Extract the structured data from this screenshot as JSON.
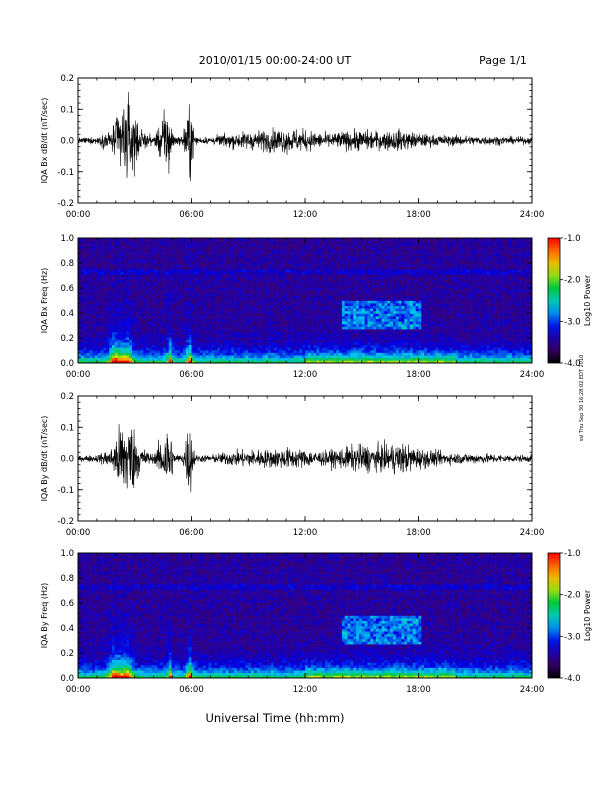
{
  "header": {
    "title": "2010/01/15  00:00-24:00 UT",
    "page": "Page 1/1"
  },
  "footer": {
    "xlabel": "Universal Time (hh:mm)"
  },
  "side_note": "ssl Thu Sep 30 16:28:02 EDT 2010",
  "chart_data": [
    {
      "type": "line",
      "ylabel": "IQA Bx dB/dt (nT/sec)",
      "xlim": [
        0,
        24
      ],
      "ylim": [
        -0.2,
        0.2
      ],
      "xticks": [
        "00:00",
        "06:00",
        "12:00",
        "18:00",
        "24:00"
      ],
      "yticks": [
        "-0.2",
        "-0.1",
        "0.0",
        "0.1",
        "0.2"
      ],
      "envelope": {
        "hours": [
          0,
          1,
          1.8,
          2.3,
          2.8,
          3.3,
          4,
          4.85,
          5.05,
          5.5,
          5.9,
          6.2,
          7,
          8,
          9,
          10,
          11,
          12,
          13,
          14,
          15,
          16,
          17,
          18,
          19,
          20,
          21,
          22,
          23,
          24
        ],
        "amplitude": [
          0.015,
          0.02,
          0.06,
          0.22,
          0.22,
          0.06,
          0.02,
          0.22,
          0.03,
          0.02,
          0.22,
          0.02,
          0.02,
          0.04,
          0.05,
          0.06,
          0.07,
          0.06,
          0.04,
          0.05,
          0.06,
          0.05,
          0.06,
          0.04,
          0.03,
          0.03,
          0.025,
          0.025,
          0.02,
          0.02
        ]
      }
    },
    {
      "type": "heatmap",
      "ylabel": "IQA Bx Freq (Hz)",
      "xlim": [
        0,
        24
      ],
      "ylim": [
        0,
        1.0
      ],
      "xticks": [
        "00:00",
        "06:00",
        "12:00",
        "18:00",
        "24:00"
      ],
      "yticks": [
        "0.0",
        "0.2",
        "0.4",
        "0.6",
        "0.8",
        "1.0"
      ],
      "colorbar": {
        "label": "Log10 Power",
        "range": [
          -4.0,
          -1.0
        ],
        "ticks": [
          "-1.0",
          "-2.0",
          "-3.0",
          "-4.0"
        ]
      }
    },
    {
      "type": "line",
      "ylabel": "IQA By dB/dt (nT/sec)",
      "xlim": [
        0,
        24
      ],
      "ylim": [
        -0.2,
        0.2
      ],
      "xticks": [
        "00:00",
        "06:00",
        "12:00",
        "18:00",
        "24:00"
      ],
      "yticks": [
        "-0.2",
        "-0.1",
        "0.0",
        "0.1",
        "0.2"
      ],
      "envelope": {
        "hours": [
          0,
          1,
          1.8,
          2.3,
          2.8,
          3.3,
          4,
          4.85,
          5.05,
          5.5,
          5.9,
          6.2,
          7,
          8,
          9,
          10,
          11,
          12,
          13,
          14,
          15,
          16,
          17,
          18,
          19,
          20,
          21,
          22,
          23,
          24
        ],
        "amplitude": [
          0.015,
          0.02,
          0.06,
          0.22,
          0.22,
          0.07,
          0.02,
          0.22,
          0.03,
          0.02,
          0.22,
          0.02,
          0.02,
          0.04,
          0.05,
          0.05,
          0.06,
          0.05,
          0.04,
          0.06,
          0.08,
          0.07,
          0.09,
          0.06,
          0.04,
          0.03,
          0.03,
          0.025,
          0.02,
          0.02
        ]
      }
    },
    {
      "type": "heatmap",
      "ylabel": "IQA By Freq (Hz)",
      "xlim": [
        0,
        24
      ],
      "ylim": [
        0,
        1.0
      ],
      "xticks": [
        "00:00",
        "06:00",
        "12:00",
        "18:00",
        "24:00"
      ],
      "yticks": [
        "0.0",
        "0.2",
        "0.4",
        "0.6",
        "0.8",
        "1.0"
      ],
      "colorbar": {
        "label": "Log10 Power",
        "range": [
          -4.0,
          -1.0
        ],
        "ticks": [
          "-1.0",
          "-2.0",
          "-3.0",
          "-4.0"
        ]
      }
    }
  ]
}
